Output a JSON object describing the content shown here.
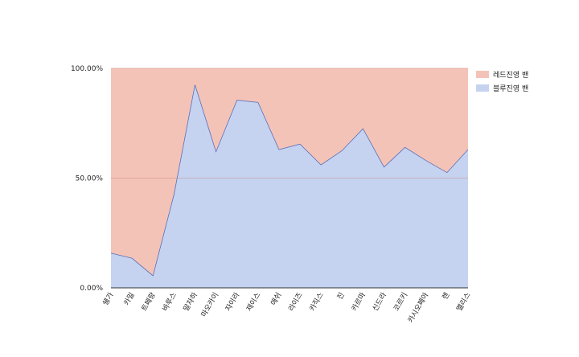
{
  "chart_data": {
    "type": "area",
    "stacked": "percent",
    "categories": [
      "쉥가",
      "카밀",
      "트페랑",
      "바루스",
      "말자하",
      "마오카이",
      "자이라",
      "제이스",
      "애쉬",
      "라이즈",
      "카직스",
      "진",
      "카르마",
      "신드라",
      "코르키",
      "카시오페아",
      "렌",
      "멜리스"
    ],
    "series": [
      {
        "name": "블루진영 밴",
        "color": "#c5d3f0",
        "values": [
          15.8,
          13.5,
          5.5,
          42.5,
          92.5,
          62.0,
          85.5,
          84.5,
          63.0,
          65.5,
          56.0,
          62.5,
          72.5,
          55.0,
          64.0,
          58.0,
          52.5,
          63.0
        ]
      },
      {
        "name": "레드진영 밴",
        "color": "#f4c3b8",
        "values": [
          84.2,
          86.5,
          94.5,
          57.5,
          7.5,
          38.0,
          14.5,
          15.5,
          37.0,
          34.5,
          44.0,
          37.5,
          27.5,
          45.0,
          36.0,
          42.0,
          47.5,
          37.0
        ]
      }
    ],
    "y_ticks": [
      "0.00%",
      "50.00%",
      "100.00%"
    ],
    "y_tick_values": [
      0,
      50,
      100
    ],
    "ylim": [
      0,
      100
    ],
    "legend": "right-top",
    "grid": true
  }
}
